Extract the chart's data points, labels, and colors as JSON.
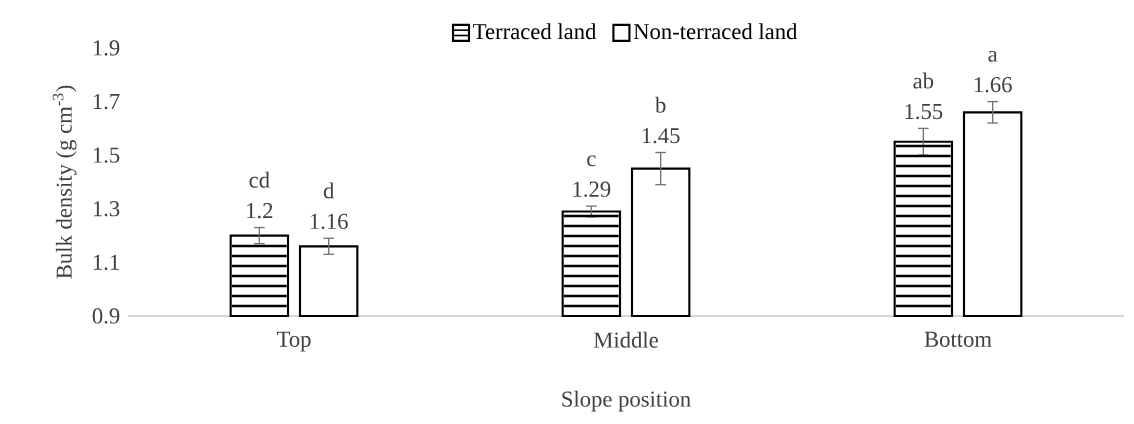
{
  "chart_data": {
    "type": "bar",
    "xlabel": "Slope position",
    "ylabel": "Bulk density (g cm$^{-3}$)",
    "categories": [
      "Top",
      "Middle",
      "Bottom"
    ],
    "series": [
      {
        "name": "Terraced land",
        "color": "#000000",
        "values": [
          1.2,
          1.29,
          1.55
        ],
        "errors": [
          0.03,
          0.02,
          0.05
        ]
      },
      {
        "name": "Non-terraced land",
        "color": "#ffffff",
        "values": [
          1.16,
          1.45,
          1.66
        ],
        "errors": [
          0.03,
          0.06,
          0.04
        ]
      }
    ],
    "ylim": [
      0.9,
      1.9
    ],
    "yticks": [
      0.9,
      1.1,
      1.3,
      1.5,
      1.7,
      1.9
    ],
    "data_labels": true,
    "legend": "top",
    "grid": false,
    "annotations": [
      "cd",
      "d",
      "c",
      "b",
      "ab",
      "a"
    ]
  }
}
